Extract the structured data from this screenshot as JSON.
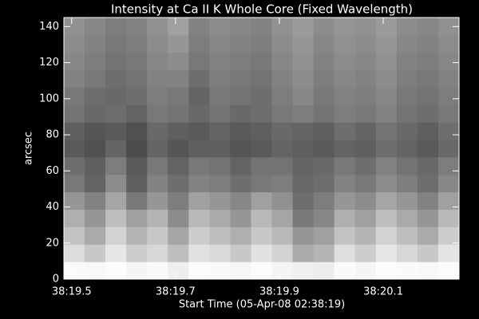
{
  "chart_data": {
    "type": "heatmap",
    "title": "Intensity at Ca II K Whole Core (Fixed Wavelength)",
    "xlabel": "Start Time (05-Apr-08 02:38:19)",
    "ylabel": "arcsec",
    "xlim": [
      19.485,
      20.246
    ],
    "xticks": [
      {
        "value": 19.5,
        "label": "38:19.5"
      },
      {
        "value": 19.7,
        "label": "38:19.7"
      },
      {
        "value": 19.9,
        "label": "38:19.9"
      },
      {
        "value": 20.1,
        "label": "38:20.1"
      }
    ],
    "ylim": [
      0,
      145
    ],
    "yticks": [
      0,
      20,
      40,
      60,
      80,
      100,
      120,
      140
    ],
    "background": "#000000",
    "axis_color": "#ffffff",
    "z": [
      [
        250,
        248,
        252,
        245,
        250,
        238,
        252,
        250,
        246,
        251,
        244,
        240,
        236,
        250,
        245,
        252,
        250,
        248,
        252
      ],
      [
        220,
        200,
        230,
        205,
        215,
        190,
        225,
        218,
        200,
        226,
        210,
        170,
        180,
        222,
        205,
        230,
        215,
        200,
        228
      ],
      [
        195,
        170,
        210,
        180,
        200,
        165,
        205,
        190,
        175,
        200,
        185,
        150,
        160,
        195,
        180,
        210,
        190,
        170,
        205
      ],
      [
        175,
        150,
        190,
        160,
        180,
        140,
        185,
        170,
        150,
        185,
        165,
        120,
        135,
        175,
        160,
        190,
        170,
        150,
        185
      ],
      [
        150,
        130,
        165,
        120,
        150,
        125,
        160,
        150,
        135,
        160,
        145,
        110,
        125,
        150,
        140,
        165,
        150,
        130,
        160
      ],
      [
        120,
        100,
        140,
        95,
        130,
        110,
        130,
        125,
        110,
        120,
        125,
        105,
        110,
        130,
        120,
        140,
        125,
        110,
        135
      ],
      [
        110,
        95,
        125,
        90,
        120,
        100,
        120,
        115,
        100,
        115,
        115,
        100,
        105,
        120,
        110,
        130,
        115,
        105,
        125
      ],
      [
        90,
        80,
        100,
        75,
        100,
        85,
        95,
        95,
        85,
        90,
        100,
        95,
        90,
        100,
        95,
        110,
        100,
        90,
        105
      ],
      [
        95,
        85,
        90,
        80,
        105,
        95,
        90,
        100,
        90,
        95,
        105,
        100,
        95,
        110,
        100,
        115,
        105,
        95,
        110
      ],
      [
        115,
        105,
        110,
        100,
        120,
        115,
        105,
        115,
        105,
        110,
        120,
        125,
        115,
        125,
        120,
        130,
        115,
        110,
        120
      ],
      [
        120,
        110,
        105,
        110,
        125,
        120,
        100,
        120,
        115,
        110,
        125,
        135,
        120,
        130,
        125,
        135,
        120,
        115,
        125
      ],
      [
        130,
        120,
        110,
        115,
        130,
        130,
        110,
        125,
        120,
        115,
        130,
        140,
        125,
        135,
        130,
        140,
        125,
        120,
        130
      ],
      [
        135,
        125,
        115,
        120,
        135,
        140,
        120,
        130,
        125,
        120,
        135,
        145,
        130,
        140,
        135,
        145,
        130,
        125,
        135
      ],
      [
        140,
        130,
        120,
        125,
        140,
        150,
        125,
        135,
        130,
        125,
        140,
        150,
        135,
        145,
        140,
        150,
        135,
        130,
        140
      ],
      [
        145,
        135,
        125,
        130,
        145,
        160,
        130,
        140,
        135,
        130,
        145,
        155,
        140,
        150,
        145,
        155,
        140,
        135,
        145
      ]
    ]
  }
}
